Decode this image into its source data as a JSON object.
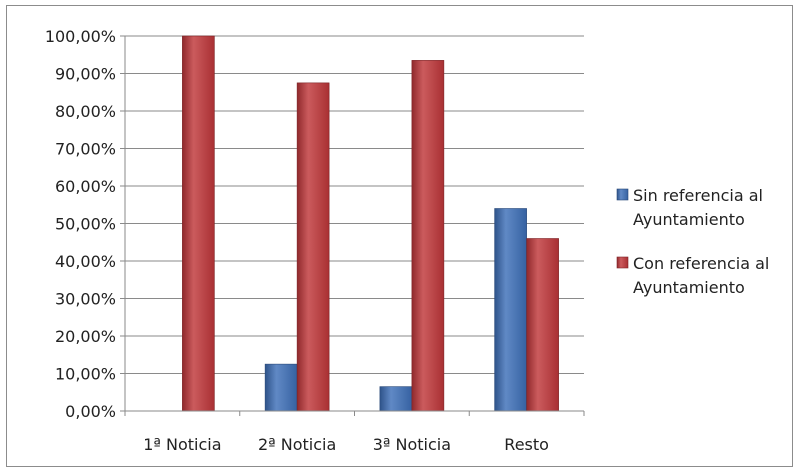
{
  "chart_data": {
    "type": "bar",
    "categories": [
      "1ª Noticia",
      "2ª Noticia",
      "3ª Noticia",
      "Resto"
    ],
    "series": [
      {
        "name": "Sin referencia al Ayuntamiento",
        "values": [
          0,
          12.5,
          6.5,
          54
        ],
        "color": "#3d6fb8"
      },
      {
        "name": "Con referencia al Ayuntamiento",
        "values": [
          100,
          87.5,
          93.5,
          46
        ],
        "color": "#c0373a"
      }
    ],
    "ylim": [
      0,
      100
    ],
    "ytick_step": 10,
    "ytick_labels": [
      "0,00%",
      "10,00%",
      "20,00%",
      "30,00%",
      "40,00%",
      "50,00%",
      "60,00%",
      "70,00%",
      "80,00%",
      "90,00%",
      "100,00%"
    ],
    "grid": true,
    "legend_position": "right",
    "legend_lines": [
      [
        "Sin referencia al",
        "Ayuntamiento"
      ],
      [
        "Con referencia al",
        "Ayuntamiento"
      ]
    ]
  }
}
